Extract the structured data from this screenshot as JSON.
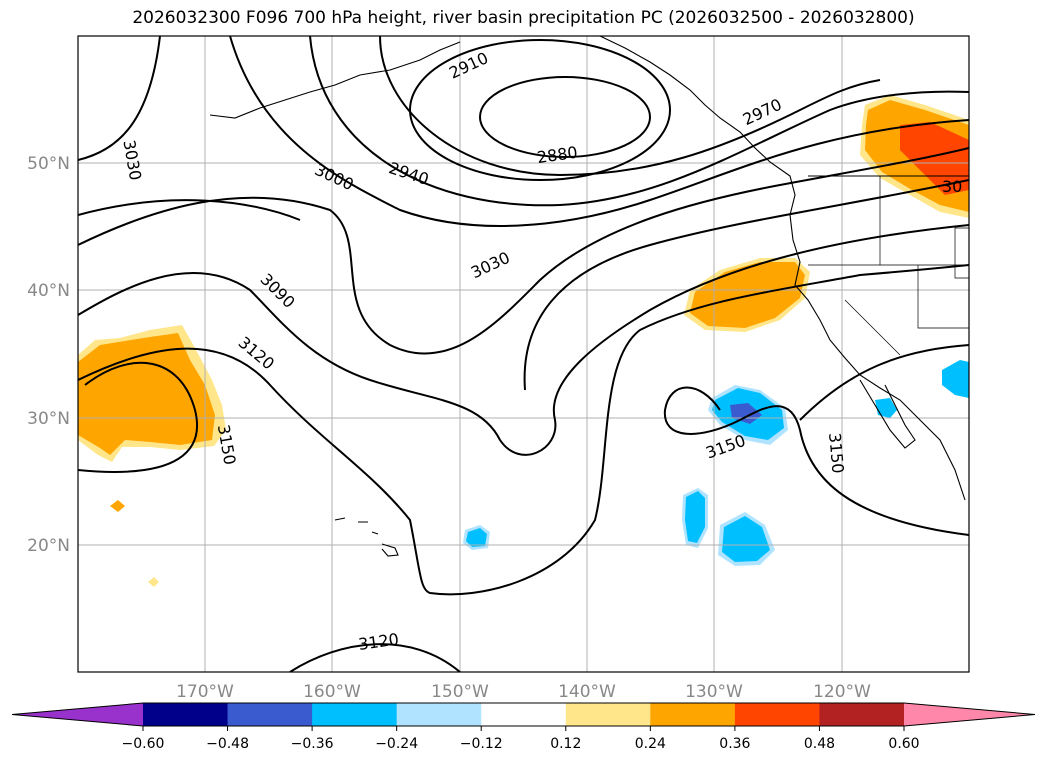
{
  "title": "2026032300 F096 700 hPa height, river basin precipitation PC (2026032500 - 2026032800)",
  "lat_labels": [
    "50°N",
    "40°N",
    "30°N",
    "20°N"
  ],
  "lon_labels": [
    "170°W",
    "160°W",
    "150°W",
    "140°W",
    "130°W",
    "120°W"
  ],
  "contour_labels": [
    "3030",
    "2910",
    "2970",
    "2880",
    "3000",
    "2940",
    "3030",
    "3090",
    "3120",
    "3150",
    "3150",
    "3150",
    "3120",
    "30"
  ],
  "colorbar": {
    "ticks": [
      "−0.60",
      "−0.48",
      "−0.36",
      "−0.24",
      "−0.12",
      "0.12",
      "0.24",
      "0.36",
      "0.48",
      "0.60"
    ],
    "colors": [
      "#9932cc",
      "#00008b",
      "#3a5bd0",
      "#00bfff",
      "#afe3ff",
      "#ffffff",
      "#ffe68a",
      "#ffa500",
      "#ff4500",
      "#b22222",
      "#ff88aa"
    ]
  },
  "colors": {
    "positive_low": "#ffe68a",
    "positive_mid": "#ffa500",
    "positive_high": "#ff4500",
    "negative_low": "#afe3ff",
    "negative_mid": "#00bfff",
    "negative_high": "#3a5bd0",
    "gridline": "#b0b0b0",
    "contour": "#000000"
  }
}
